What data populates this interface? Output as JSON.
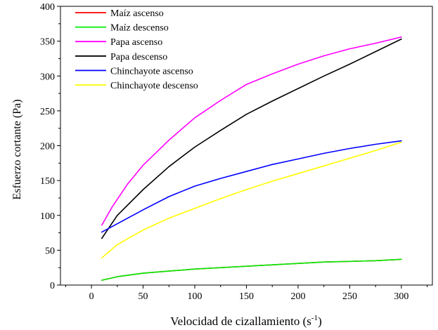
{
  "chart_data": {
    "type": "line",
    "xlabel": "Velocidad de cizallamiento (s",
    "xlabel_sup": "-1",
    "xlabel_close": ")",
    "ylabel": "Esfuerzo cortante (Pa)",
    "xlim": [
      -30,
      330
    ],
    "ylim": [
      0,
      400
    ],
    "xticks": [
      0,
      50,
      100,
      150,
      200,
      250,
      300
    ],
    "yticks": [
      0,
      50,
      100,
      150,
      200,
      250,
      300,
      350,
      400
    ],
    "grid": false,
    "legend_position": "top-left",
    "series": [
      {
        "name": "Maíz ascenso",
        "color": "#ff0000",
        "x": [
          10,
          25,
          50,
          75,
          100,
          125,
          150,
          175,
          200,
          225,
          250,
          275,
          300
        ],
        "y": [
          7,
          12,
          17,
          20,
          23,
          25,
          27,
          29,
          31,
          33,
          34,
          35,
          37
        ]
      },
      {
        "name": "Maíz descenso",
        "color": "#00ee00",
        "x": [
          10,
          25,
          50,
          75,
          100,
          125,
          150,
          175,
          200,
          225,
          250,
          275,
          300
        ],
        "y": [
          7,
          12,
          17,
          20,
          23,
          25,
          27,
          29,
          31,
          33,
          34,
          35,
          37
        ]
      },
      {
        "name": "Papa ascenso",
        "color": "#ff00ff",
        "x": [
          10,
          20,
          35,
          50,
          75,
          100,
          125,
          150,
          175,
          200,
          225,
          250,
          275,
          300
        ],
        "y": [
          86,
          112,
          145,
          172,
          208,
          240,
          265,
          288,
          303,
          317,
          329,
          339,
          347,
          356
        ]
      },
      {
        "name": "Papa descenso",
        "color": "#000000",
        "x": [
          10,
          25,
          50,
          75,
          100,
          125,
          150,
          175,
          200,
          225,
          250,
          275,
          300
        ],
        "y": [
          67,
          100,
          137,
          170,
          198,
          222,
          245,
          264,
          282,
          300,
          317,
          335,
          353
        ]
      },
      {
        "name": "Chinchayote ascenso",
        "color": "#0000ff",
        "x": [
          10,
          25,
          50,
          75,
          100,
          125,
          150,
          175,
          200,
          225,
          250,
          275,
          300
        ],
        "y": [
          76,
          88,
          108,
          127,
          142,
          153,
          163,
          173,
          181,
          189,
          196,
          202,
          207
        ]
      },
      {
        "name": "Chinchayote descenso",
        "color": "#ffff00",
        "x": [
          10,
          25,
          50,
          75,
          100,
          125,
          150,
          175,
          200,
          225,
          250,
          275,
          300
        ],
        "y": [
          39,
          58,
          79,
          96,
          110,
          124,
          137,
          149,
          160,
          171,
          182,
          193,
          205
        ]
      }
    ]
  }
}
